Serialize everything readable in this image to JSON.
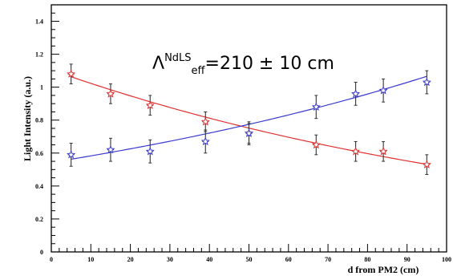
{
  "chart_data": {
    "type": "scatter",
    "title": "",
    "xlabel": "d from PM2 (cm)",
    "ylabel": "Light Intensity (a.u.)",
    "xlim": [
      0,
      100
    ],
    "ylim": [
      0,
      1.5
    ],
    "xticks": [
      0,
      10,
      20,
      30,
      40,
      50,
      60,
      70,
      80,
      90,
      100
    ],
    "yticks": [
      0,
      0.2,
      0.4,
      0.6,
      0.8,
      1,
      1.2,
      1.4
    ],
    "ytick_labels": [
      "0",
      "0.2",
      "0.4",
      "0.6",
      "0.8",
      "1",
      "1.2",
      "1.4"
    ],
    "grid": false,
    "annotation": {
      "symbol": "Λ",
      "superscript": "NdLS",
      "subscript": "eff",
      "text": "=210 ± 10 cm"
    },
    "series": [
      {
        "color": "#e03030",
        "marker": "star",
        "x": [
          5,
          15,
          25,
          39,
          50,
          67,
          77,
          84,
          95
        ],
        "y": [
          1.08,
          0.96,
          0.89,
          0.79,
          0.72,
          0.65,
          0.61,
          0.61,
          0.53
        ],
        "yerr": [
          0.06,
          0.06,
          0.06,
          0.06,
          0.06,
          0.06,
          0.06,
          0.06,
          0.06
        ],
        "fit": {
          "a": 1.105,
          "b": 0.0077
        }
      },
      {
        "color": "#3a3ad0",
        "marker": "star",
        "x": [
          5,
          15,
          25,
          39,
          50,
          67,
          77,
          84,
          95
        ],
        "y": [
          0.59,
          0.62,
          0.61,
          0.67,
          0.72,
          0.88,
          0.96,
          0.98,
          1.03
        ],
        "yerr": [
          0.07,
          0.07,
          0.07,
          0.07,
          0.07,
          0.07,
          0.07,
          0.07,
          0.07
        ],
        "fit": {
          "a": 0.543,
          "b": -0.0071
        }
      }
    ]
  }
}
